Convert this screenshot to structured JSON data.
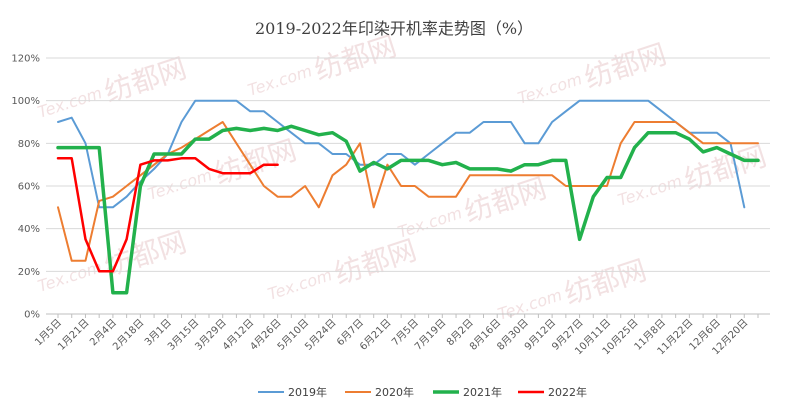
{
  "chart_data": {
    "type": "line",
    "title": "2019-2022年印染开机率走势图（%）",
    "categories": [
      "1月5日",
      "1月21日",
      "2月4日",
      "2月18日",
      "3月1日",
      "3月15日",
      "3月29日",
      "4月12日",
      "4月26日",
      "5月10日",
      "5月24日",
      "6月7日",
      "6月21日",
      "7月5日",
      "7月19日",
      "8月2日",
      "8月16日",
      "8月30日",
      "9月12日",
      "9月27日",
      "10月11日",
      "10月25日",
      "11月8日",
      "11月22日",
      "12月6日",
      "12月20日"
    ],
    "y_tick_labels": [
      "0%",
      "20%",
      "40%",
      "60%",
      "80%",
      "100%",
      "120%"
    ],
    "ylim": [
      0,
      120
    ],
    "x_range": [
      0,
      51
    ],
    "grid": true,
    "legend_position": "bottom",
    "watermark": {
      "text": "纺都网",
      "latin": "Tex.com"
    },
    "series": [
      {
        "name": "2019年",
        "color": "#5b9bd5",
        "width": 2,
        "x": [
          0,
          1,
          2,
          3,
          4,
          5,
          6,
          7,
          8,
          9,
          10,
          11,
          12,
          13,
          14,
          15,
          16,
          17,
          18,
          19,
          20,
          21,
          22,
          23,
          24,
          25,
          26,
          27,
          28,
          29,
          30,
          31,
          32,
          33,
          34,
          35,
          36,
          37,
          38,
          39,
          40,
          41,
          42,
          43,
          44,
          45,
          46,
          47,
          48,
          49,
          50
        ],
        "values": [
          90,
          92,
          80,
          50,
          50,
          55,
          62,
          68,
          75,
          90,
          100,
          100,
          100,
          100,
          95,
          95,
          90,
          85,
          80,
          80,
          75,
          75,
          70,
          70,
          75,
          75,
          70,
          75,
          80,
          85,
          85,
          90,
          90,
          90,
          80,
          80,
          90,
          95,
          100,
          100,
          100,
          100,
          100,
          100,
          95,
          90,
          85,
          85,
          85,
          80,
          50
        ]
      },
      {
        "name": "2020年",
        "color": "#ed7d31",
        "width": 2,
        "x": [
          0,
          1,
          2,
          3,
          4,
          5,
          6,
          7,
          8,
          9,
          10,
          11,
          12,
          13,
          14,
          15,
          16,
          17,
          18,
          19,
          20,
          21,
          22,
          23,
          24,
          25,
          26,
          27,
          28,
          29,
          30,
          31,
          32,
          33,
          34,
          35,
          36,
          37,
          38,
          39,
          40,
          41,
          42,
          43,
          44,
          45,
          46,
          47,
          48,
          49,
          50,
          51
        ],
        "values": [
          50,
          25,
          25,
          53,
          55,
          60,
          65,
          70,
          75,
          78,
          82,
          86,
          90,
          80,
          70,
          60,
          55,
          55,
          60,
          50,
          65,
          70,
          80,
          50,
          70,
          60,
          60,
          55,
          55,
          55,
          65,
          65,
          65,
          65,
          65,
          65,
          65,
          60,
          60,
          60,
          60,
          80,
          90,
          90,
          90,
          90,
          85,
          80,
          80,
          80,
          80,
          80
        ]
      },
      {
        "name": "2021年",
        "color": "#22b14c",
        "width": 3.5,
        "x": [
          0,
          1,
          2,
          3,
          4,
          5,
          6,
          7,
          8,
          9,
          10,
          11,
          12,
          13,
          14,
          15,
          16,
          17,
          18,
          19,
          20,
          21,
          22,
          23,
          24,
          25,
          26,
          27,
          28,
          29,
          30,
          31,
          32,
          33,
          34,
          35,
          36,
          37,
          38,
          39,
          40,
          41,
          42,
          43,
          44,
          45,
          46,
          47,
          48,
          49,
          50,
          51
        ],
        "values": [
          78,
          78,
          78,
          78,
          10,
          10,
          60,
          75,
          75,
          75,
          82,
          82,
          86,
          87,
          86,
          87,
          86,
          88,
          86,
          84,
          85,
          81,
          67,
          71,
          68,
          72,
          72,
          72,
          70,
          71,
          68,
          68,
          68,
          67,
          70,
          70,
          72,
          72,
          35,
          55,
          64,
          64,
          78,
          85,
          85,
          85,
          82,
          76,
          78,
          75,
          72,
          72
        ]
      },
      {
        "name": "2022年",
        "color": "#ff0000",
        "width": 2.5,
        "x": [
          0,
          1,
          2,
          3,
          4,
          5,
          6,
          7,
          8,
          9,
          10,
          11,
          12,
          13,
          14,
          15,
          16
        ],
        "values": [
          73,
          73,
          35,
          20,
          20,
          35,
          70,
          72,
          72,
          73,
          73,
          68,
          66,
          66,
          66,
          70,
          70
        ]
      }
    ]
  }
}
